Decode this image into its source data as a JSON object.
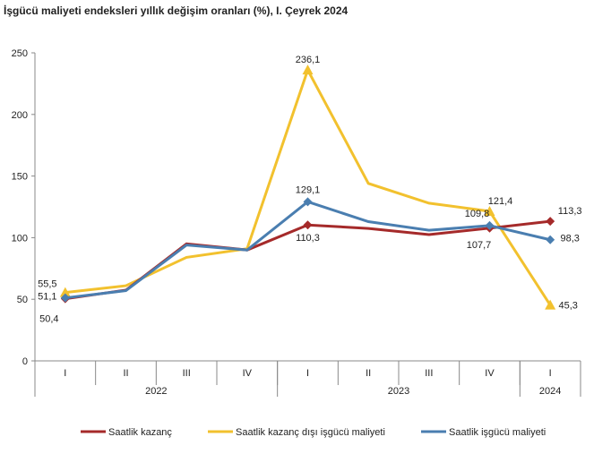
{
  "chart_data": {
    "type": "line",
    "title": "İşgücü maliyeti endeksleri yıllık değişim oranları (%), I. Çeyrek 2024",
    "categories": [
      "I",
      "II",
      "III",
      "IV",
      "I",
      "II",
      "III",
      "IV",
      "I"
    ],
    "year_groups": [
      {
        "label": "2022",
        "span": 4
      },
      {
        "label": "2023",
        "span": 4
      },
      {
        "label": "2024",
        "span": 1
      }
    ],
    "ylim": [
      0,
      250
    ],
    "yticks": [
      0,
      50,
      100,
      150,
      200,
      250
    ],
    "grid": false,
    "legend_placement": "bottom",
    "series": [
      {
        "name": "Saatlik kazanç",
        "color": "#A52A2A",
        "marker": "diamond",
        "values": [
          50.4,
          57.4,
          95,
          90,
          110.3,
          107.5,
          102.5,
          107.7,
          113.3
        ],
        "labels": {
          "0": "50,4",
          "4": "110,3",
          "7": "107,7",
          "8": "113,3"
        }
      },
      {
        "name": "Saatlik kazanç dışı işgücü maliyeti",
        "color": "#F2C12E",
        "marker": "triangle",
        "values": [
          55.5,
          61,
          84,
          91,
          236.1,
          144,
          128,
          121.4,
          45.3
        ],
        "labels": {
          "0": "55,5",
          "4": "236,1",
          "7": "121,4",
          "8": "45,3"
        }
      },
      {
        "name": "Saatlik işgücü maliyeti",
        "color": "#4A7EB0",
        "marker": "diamond",
        "values": [
          51.1,
          57,
          94,
          90,
          129.1,
          113,
          106,
          109.8,
          98.3
        ],
        "labels": {
          "0": "51,1",
          "4": "129,1",
          "7": "109,8",
          "8": "98,3"
        }
      }
    ]
  }
}
